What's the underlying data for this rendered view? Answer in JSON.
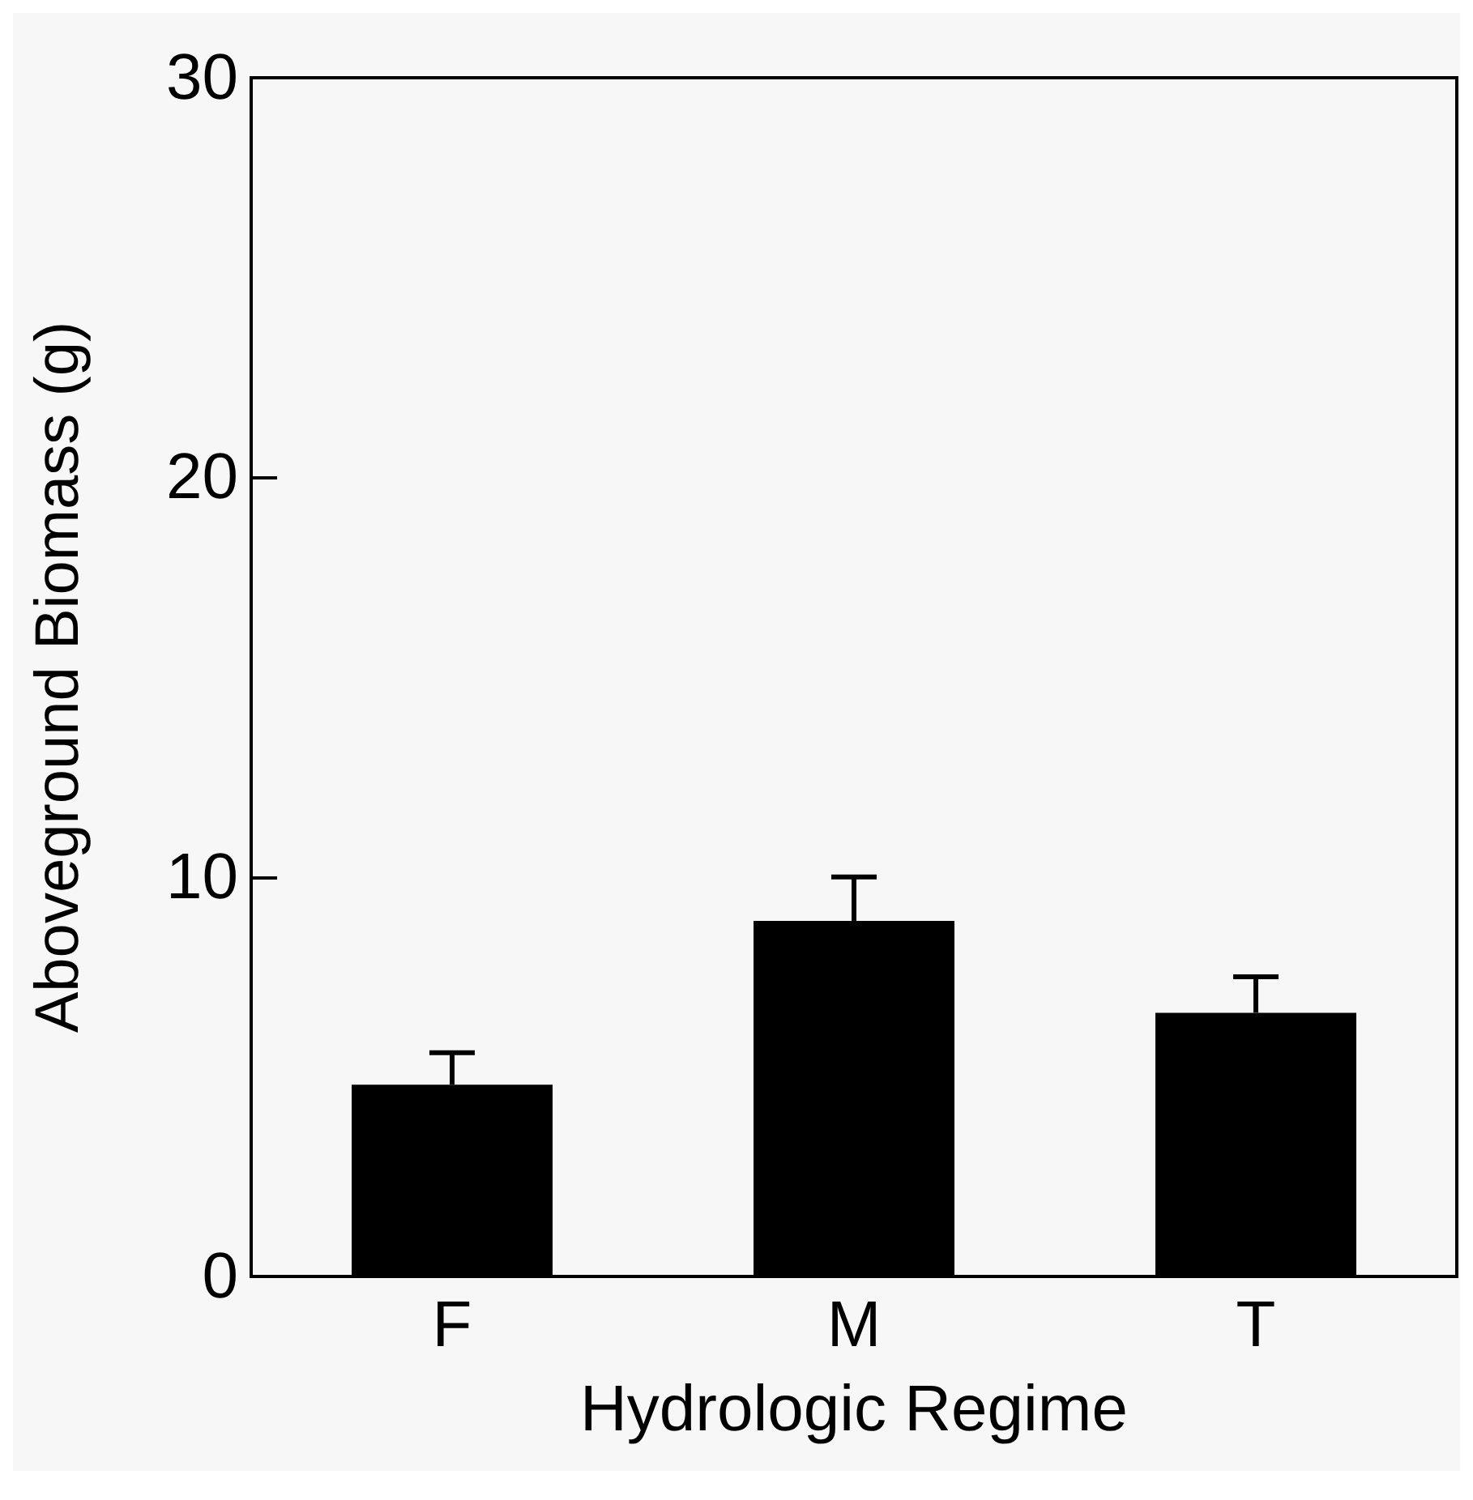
{
  "chart_data": {
    "type": "bar",
    "xlabel": "Hydrologic Regime",
    "ylabel": "Aboveground Biomass (g)",
    "categories": [
      "F",
      "M",
      "T"
    ],
    "values": [
      4.8,
      8.9,
      6.6
    ],
    "errors": [
      [
        4.8,
        5.6
      ],
      [
        8.9,
        10.0
      ],
      [
        6.6,
        7.5
      ]
    ],
    "color": "#000000",
    "ylim": [
      0,
      30
    ],
    "yticks": [
      0,
      10,
      20,
      30
    ],
    "grid": false
  }
}
